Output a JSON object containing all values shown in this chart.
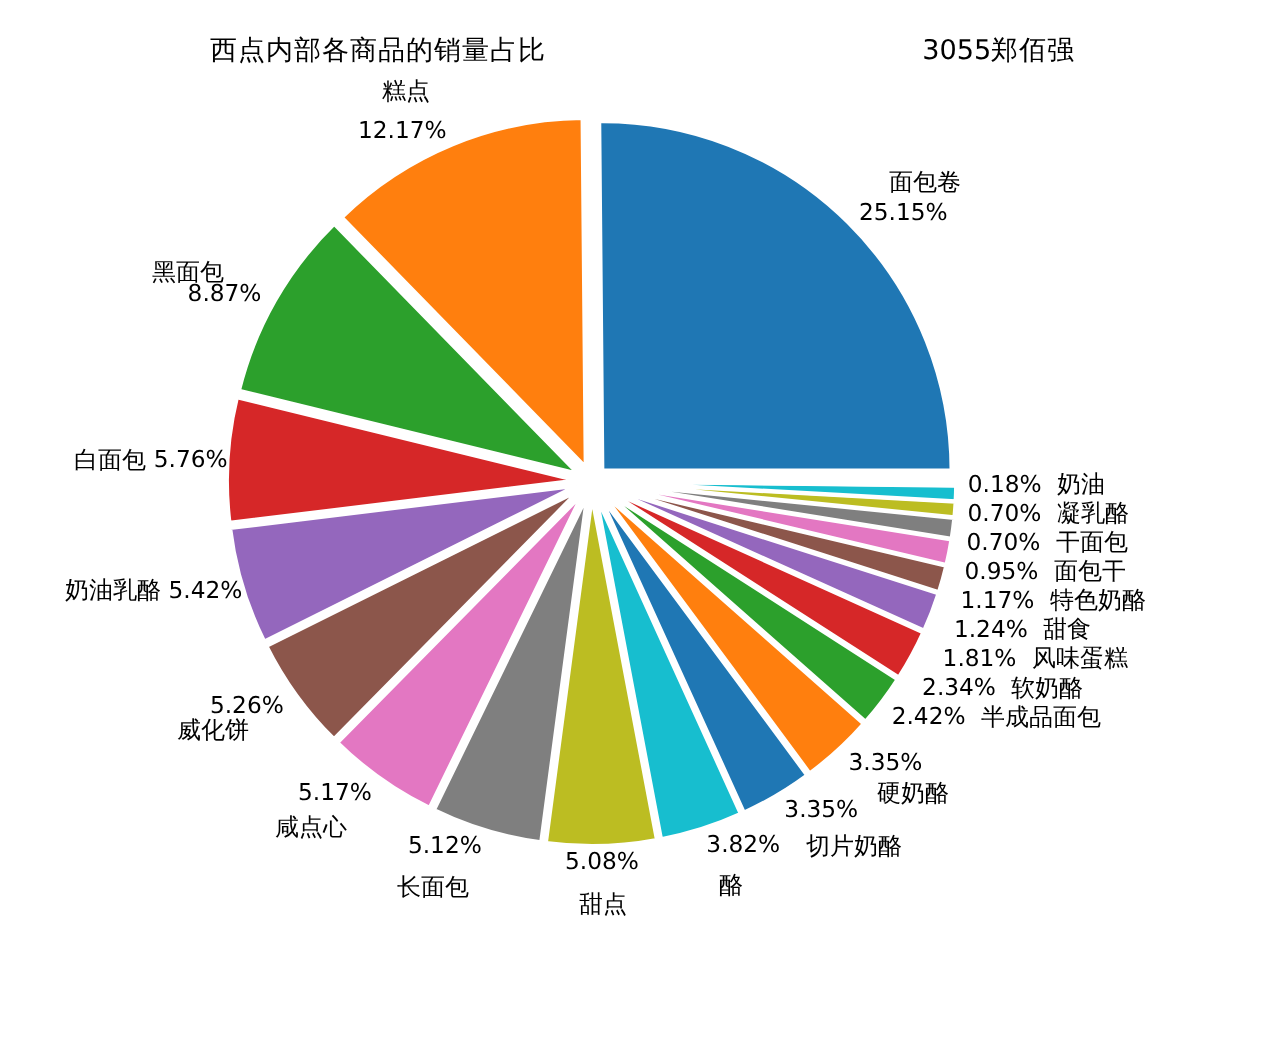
{
  "chart_data": {
    "type": "pie",
    "title": "西点内部各商品的销量占比",
    "subtitle": "3055郑佰强",
    "categories": [
      "面包卷",
      "糕点",
      "黑面包",
      "白面包",
      "奶油乳酪",
      "威化饼",
      "咸点心",
      "长面包",
      "甜点",
      "酪",
      "切片奶酪",
      "硬奶酪",
      "半成品面包",
      "软奶酪",
      "风味蛋糕",
      "甜食",
      "特色奶酪",
      "面包干",
      "干面包",
      "凝乳酪",
      "奶油"
    ],
    "values": [
      25.15,
      12.17,
      8.87,
      5.76,
      5.42,
      5.26,
      5.17,
      5.12,
      5.08,
      3.82,
      3.35,
      3.35,
      2.42,
      2.34,
      1.81,
      1.24,
      1.17,
      0.95,
      0.7,
      0.7,
      0.18
    ],
    "colors": [
      "#1f77b4",
      "#ff7f0e",
      "#2ca02c",
      "#d62728",
      "#9467bd",
      "#8c564b",
      "#e377c2",
      "#7f7f7f",
      "#bcbd22",
      "#17becf",
      "#1f77b4",
      "#ff7f0e",
      "#2ca02c",
      "#d62728",
      "#9467bd",
      "#8c564b",
      "#e377c2",
      "#7f7f7f",
      "#bcbd22",
      "#17becf",
      "#1f77b4"
    ],
    "value_labels": [
      "25.15%",
      "12.17%",
      "8.87%",
      "5.76%",
      "5.42%",
      "5.26%",
      "5.17%",
      "5.12%",
      "5.08%",
      "3.82%",
      "3.35%",
      "3.35%",
      "2.42%",
      "2.34%",
      "1.81%",
      "1.24%",
      "1.17%",
      "0.95%",
      "0.70%",
      "0.70%",
      "0.18%"
    ]
  }
}
